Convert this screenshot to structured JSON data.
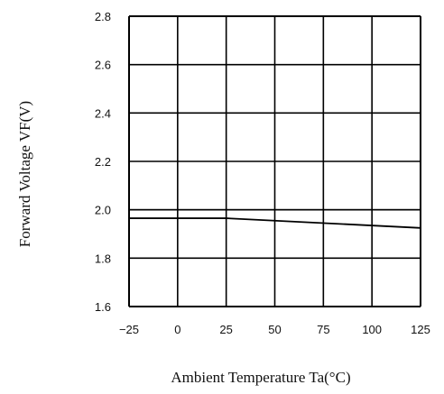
{
  "chart_data": {
    "type": "line",
    "title": "",
    "xlabel": "Ambient Temperature Ta(°C)",
    "ylabel": "Forward Voltage VF(V)",
    "xlim": [
      -25,
      125
    ],
    "ylim": [
      1.6,
      2.8
    ],
    "x_ticks": [
      "−25",
      "0",
      "25",
      "50",
      "75",
      "100",
      "125"
    ],
    "y_ticks": [
      "2.8",
      "2.6",
      "2.4",
      "2.2",
      "2.0",
      "1.8",
      "1.6"
    ],
    "grid": true,
    "series": [
      {
        "x": [
          -25,
          25,
          125
        ],
        "y": [
          1.965,
          1.965,
          1.925
        ]
      }
    ],
    "reference_lines": [
      {
        "orientation": "horizontal",
        "y": 2.0
      }
    ],
    "colors": {
      "line": "#888888",
      "grid": "#000000"
    }
  }
}
